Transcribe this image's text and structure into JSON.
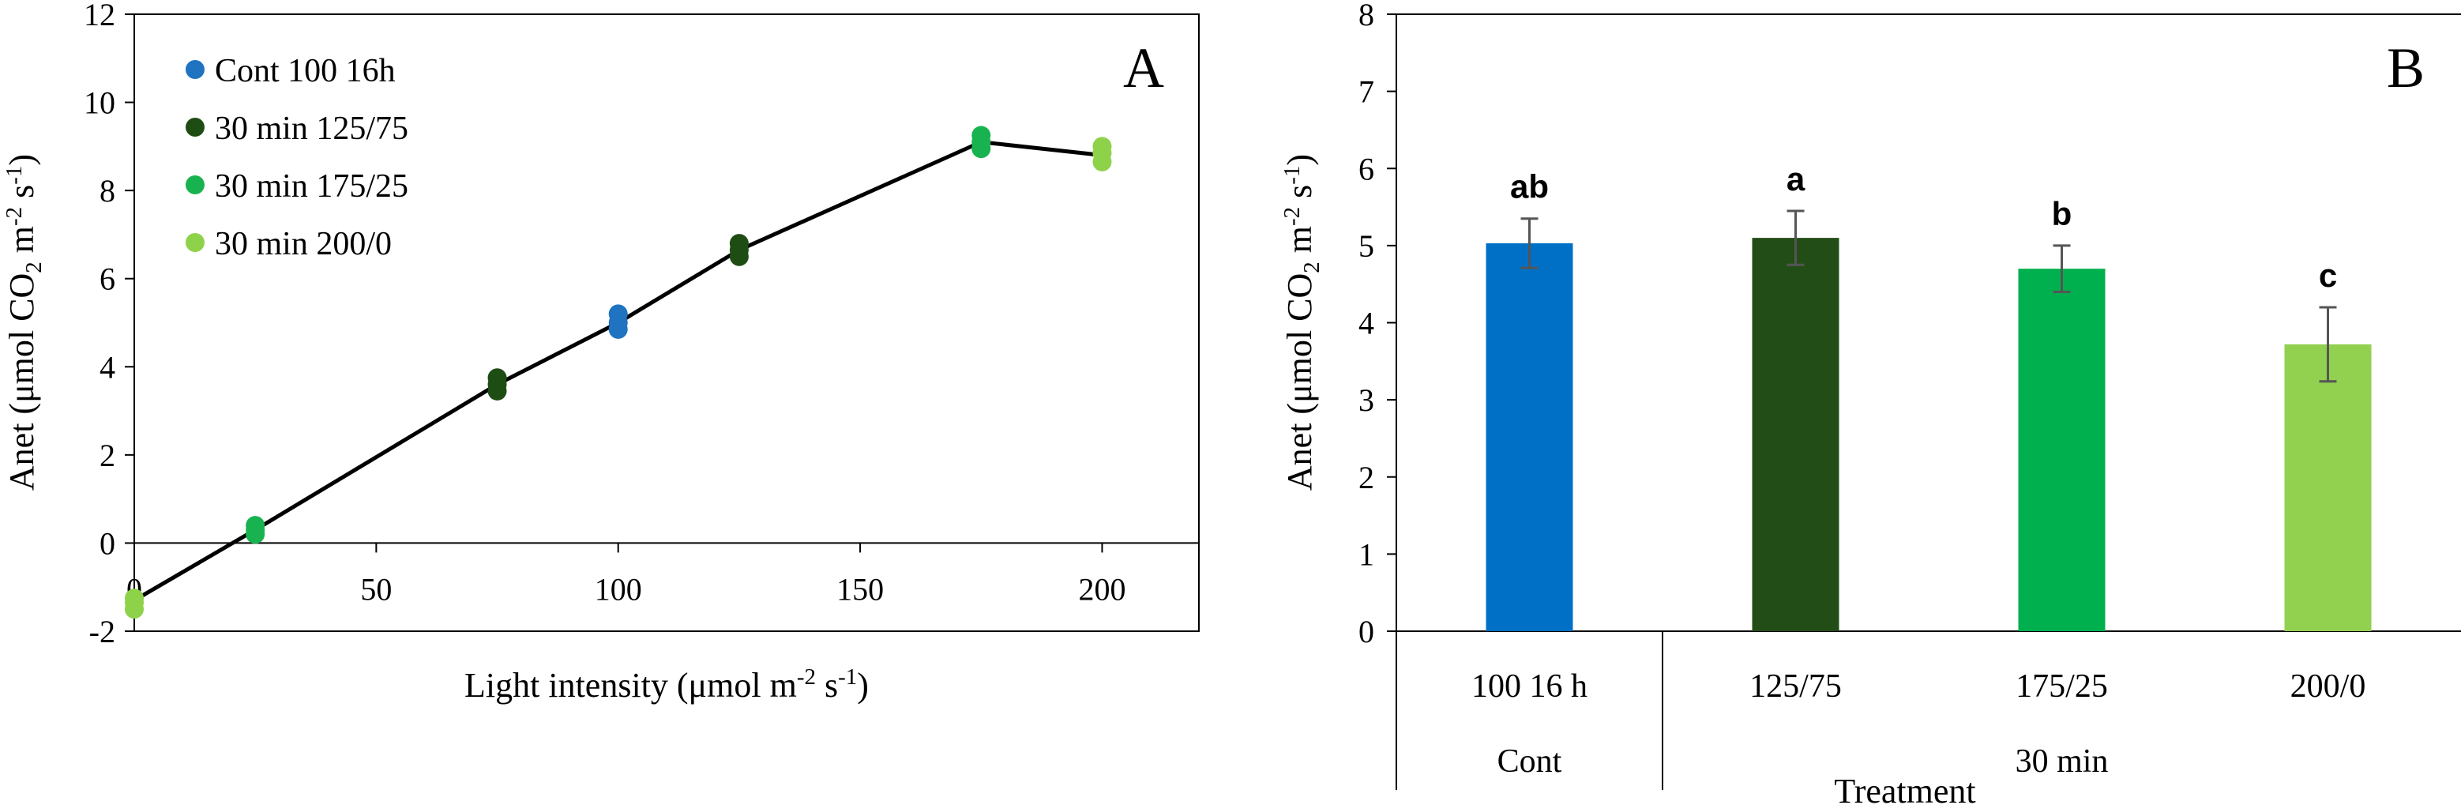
{
  "chart_data": [
    {
      "type": "scatter",
      "panel": "A",
      "xlabel": "Light intensity (μmol m-2 s-1)",
      "xlabel_parts": {
        "pre": "Light intensity (μmol m",
        "sup1": "-2",
        "mid": " s",
        "sup2": "-1",
        "post": ")"
      },
      "ylabel": "Anet (μmol CO2 m-2 s-1)",
      "ylabel_parts": {
        "pre": "Anet (μmol CO",
        "sub": "2",
        "mid1": " m",
        "sup1": "-2",
        "mid2": " s",
        "sup2": "-1",
        "post": ")"
      },
      "xlim": [
        0,
        220
      ],
      "ylim": [
        -2,
        12
      ],
      "xticks": [
        0,
        50,
        100,
        150,
        200
      ],
      "yticks": [
        -2,
        0,
        2,
        4,
        6,
        8,
        10,
        12
      ],
      "legend_position": "top-left",
      "series": [
        {
          "name": "Cont 100 16h",
          "color": "#1f73c1",
          "points": [
            [
              100,
              4.85
            ],
            [
              100,
              5.0
            ],
            [
              100,
              5.2
            ]
          ]
        },
        {
          "name": "30 min 125/75",
          "color": "#1e4d14",
          "points": [
            [
              75,
              3.45
            ],
            [
              75,
              3.6
            ],
            [
              75,
              3.75
            ],
            [
              125,
              6.5
            ],
            [
              125,
              6.65
            ],
            [
              125,
              6.8
            ]
          ]
        },
        {
          "name": "30 min 175/25",
          "color": "#18b350",
          "points": [
            [
              25,
              0.2
            ],
            [
              25,
              0.3
            ],
            [
              25,
              0.4
            ],
            [
              175,
              8.95
            ],
            [
              175,
              9.1
            ],
            [
              175,
              9.25
            ]
          ]
        },
        {
          "name": "30 min 200/0",
          "color": "#8ed24a",
          "points": [
            [
              0,
              -1.5
            ],
            [
              0,
              -1.35
            ],
            [
              0,
              -1.25
            ],
            [
              200,
              8.65
            ],
            [
              200,
              8.85
            ],
            [
              200,
              9.0
            ]
          ]
        }
      ],
      "fit_line": [
        [
          0,
          -1.3
        ],
        [
          25,
          0.3
        ],
        [
          75,
          3.6
        ],
        [
          100,
          5.0
        ],
        [
          125,
          6.65
        ],
        [
          175,
          9.1
        ],
        [
          200,
          8.8
        ]
      ]
    },
    {
      "type": "bar",
      "panel": "B",
      "ylabel": "Anet (μmol CO2 m-2 s-1)",
      "ylabel_parts": {
        "pre": "Anet (μmol CO",
        "sub": "2",
        "mid1": " m",
        "sup1": "-2",
        "mid2": " s",
        "sup2": "-1",
        "post": ")"
      },
      "xlabel": "Treatment",
      "ylim": [
        0,
        8
      ],
      "yticks": [
        0,
        1,
        2,
        3,
        4,
        5,
        6,
        7,
        8
      ],
      "categories": [
        "100 16 h",
        "125/75",
        "175/25",
        "200/0"
      ],
      "groups": [
        {
          "label": "Cont",
          "count": 1
        },
        {
          "label": "30 min",
          "count": 3
        }
      ],
      "values": [
        5.03,
        5.1,
        4.7,
        3.72
      ],
      "errors": [
        0.32,
        0.35,
        0.3,
        0.48
      ],
      "letters": [
        "ab",
        "a",
        "b",
        "c"
      ],
      "colors": [
        "#0070c6",
        "#234d17",
        "#00b04e",
        "#92d050"
      ]
    }
  ],
  "panels": {
    "a": "A",
    "b": "B"
  }
}
